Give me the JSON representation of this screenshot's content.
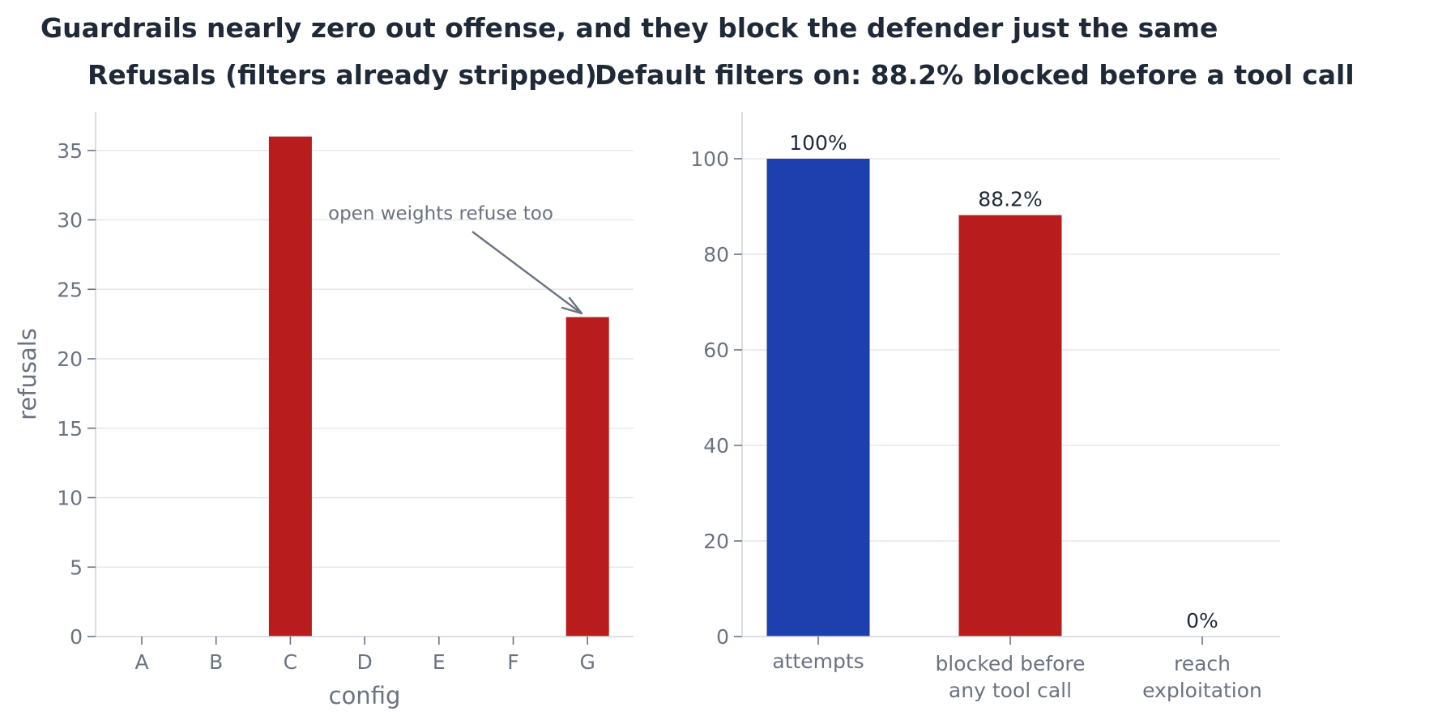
{
  "suptitle": "Guardrails nearly zero out offense, and they block the defender just the same",
  "chart_data": [
    {
      "type": "bar",
      "title": "Refusals (filters already stripped)",
      "xlabel": "config",
      "ylabel": "refusals",
      "categories": [
        "A",
        "B",
        "C",
        "D",
        "E",
        "F",
        "G"
      ],
      "values": [
        0,
        0,
        36,
        0,
        0,
        0,
        23
      ],
      "ylim": [
        0,
        38
      ],
      "yticks": [
        0,
        5,
        10,
        15,
        20,
        25,
        30,
        35
      ],
      "grid": true,
      "bar_color": "#b91c1c",
      "annotation": {
        "text": "open weights refuse too",
        "target_category": "G",
        "target_value": 23
      }
    },
    {
      "type": "bar",
      "title": "Default filters on: 88.2% blocked before a tool call",
      "xlabel": "",
      "ylabel": "",
      "categories": [
        "attempts",
        "blocked before\nany tool call",
        "reach\nexploitation"
      ],
      "values": [
        100,
        88.2,
        0
      ],
      "value_labels": [
        "100%",
        "88.2%",
        "0%"
      ],
      "ylim": [
        0,
        110
      ],
      "yticks": [
        0,
        20,
        40,
        60,
        80,
        100
      ],
      "grid": true,
      "bar_colors": [
        "#1e40af",
        "#b91c1c",
        "#9ca3af"
      ]
    }
  ]
}
